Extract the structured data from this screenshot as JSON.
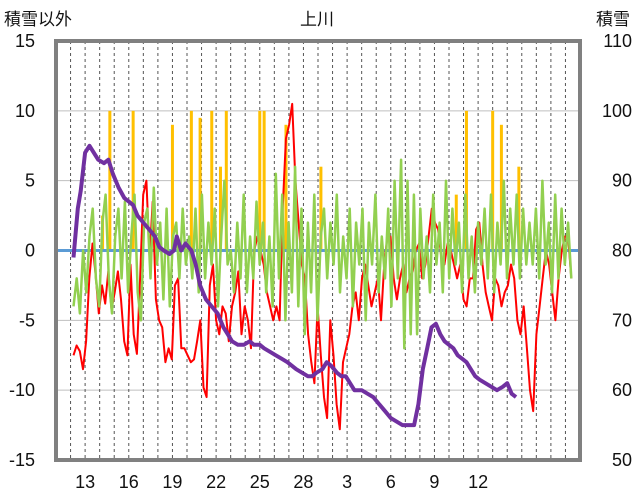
{
  "chart_data": {
    "type": "line",
    "title": "上川",
    "left_axis_label": "積雪以外",
    "right_axis_label": "積雪",
    "left_ylim": [
      -15,
      15
    ],
    "left_yticks": [
      "15",
      "10",
      "5",
      "0",
      "-5",
      "-10",
      "-15"
    ],
    "right_ylim": [
      50,
      110
    ],
    "right_yticks": [
      "110",
      "100",
      "90",
      "80",
      "70",
      "60",
      "50"
    ],
    "x_ticks": [
      "13",
      "16",
      "19",
      "22",
      "25",
      "28",
      "3",
      "6",
      "9",
      "12"
    ],
    "grid": true,
    "colors": {
      "frame": "#808080",
      "temperature": "#ff0000",
      "precipitation": "#ffc000",
      "wind": "#92d050",
      "snow_depth": "#7030a0",
      "zero_line": "#5b9bd5",
      "grid": "#bfbfbf"
    },
    "series": [
      {
        "key": "temperature",
        "axis": "left",
        "values": [
          -7.5,
          -6.8,
          -7.2,
          -8.5,
          -6.5,
          -2,
          0.5,
          -1.8,
          -4.5,
          -2.5,
          -3.8,
          -1.5,
          -4.2,
          -3,
          -1.5,
          -3.5,
          -6.5,
          -7.5,
          -1,
          -6,
          -7.4,
          -2,
          4,
          5,
          -0.5,
          3.5,
          -3.5,
          -5,
          -5.5,
          -8,
          -7,
          -7.8,
          -2.5,
          -2,
          -7,
          -7,
          -7.5,
          -8,
          -7.8,
          -6.5,
          -5,
          -9.8,
          -10.5,
          -2.5,
          -1,
          -5,
          -6,
          -4,
          -4.5,
          -6.5,
          -4,
          -3,
          -1.5,
          -6,
          -4,
          -5,
          -7,
          0,
          1,
          0,
          -1,
          -3,
          -4,
          -5,
          -4,
          -5,
          3,
          8,
          9,
          10.5,
          5,
          2,
          -1,
          -2,
          -6,
          -8,
          -9.5,
          -4,
          -7.5,
          -10.5,
          -12,
          -5,
          -7.5,
          -11,
          -12.8,
          -8,
          -7,
          -6,
          -4,
          -3,
          -5,
          -2,
          -1,
          -2.5,
          -4,
          -3,
          -2,
          -5,
          -1,
          1,
          1,
          -2,
          -3.5,
          -2,
          -1,
          -3,
          -2,
          -1.5,
          0,
          0.5,
          -2,
          -1,
          1,
          3,
          2,
          1.5,
          -0.5,
          -1,
          0.5,
          0,
          -1,
          -2,
          -1,
          -3.5,
          -4,
          -2,
          -2,
          1.5,
          2,
          -1,
          -3,
          -4,
          -5,
          -2,
          -2.5,
          -4,
          -3,
          -2.5,
          -1,
          -2,
          -5,
          -6,
          -4,
          -7,
          -10,
          -11.5,
          -6,
          -4,
          -2,
          0,
          -1,
          -3,
          -5,
          -2,
          0,
          1,
          1,
          -2
        ],
        "x_range": [
          12.2,
          46.4
        ]
      },
      {
        "key": "wind",
        "axis": "left",
        "values": [
          -4,
          -2,
          -4.5,
          0,
          -3,
          1,
          3,
          -2,
          -4,
          2,
          4,
          -2,
          -4.5,
          1,
          3,
          -2,
          3.5,
          -3,
          1,
          4,
          -3,
          -5,
          2,
          3,
          -2,
          4.5,
          -1,
          2,
          -3.5,
          3,
          -4,
          1,
          2,
          -2,
          3,
          -1,
          1,
          -2,
          3,
          -3,
          4,
          -2,
          2,
          -1,
          3,
          -4,
          1,
          5,
          -1,
          0,
          -3,
          2,
          -2,
          4,
          -3,
          1,
          -2,
          3.5,
          -1,
          2,
          -3,
          1,
          -4,
          5.5,
          -2,
          4,
          -5,
          2,
          -3,
          6,
          -4,
          3,
          -6,
          2,
          -3,
          4,
          -5,
          1,
          3,
          -2,
          2,
          -1,
          4,
          -3,
          1,
          -2,
          3,
          -4,
          2,
          -1,
          3,
          -5,
          2,
          -1,
          4,
          -3,
          1,
          -2,
          3,
          -4,
          5,
          -2,
          6.5,
          -7,
          5,
          -6,
          4,
          -6,
          3,
          -2,
          1,
          -3,
          4,
          -1,
          2,
          -3,
          5,
          -2,
          3,
          -1,
          2,
          -3,
          4,
          -2,
          1,
          -3,
          2,
          -1,
          3,
          -2,
          4,
          -3,
          2,
          -1,
          5,
          -2,
          3,
          -1,
          4,
          -2,
          3,
          -1,
          2,
          -1,
          3,
          -2,
          5,
          -1,
          2,
          -3,
          4,
          -2,
          3,
          -1,
          2,
          -2
        ],
        "x_range": [
          12.2,
          46.4
        ]
      },
      {
        "key": "snow_depth",
        "axis": "right",
        "points": [
          [
            12.2,
            79
          ],
          [
            12.5,
            86
          ],
          [
            12.7,
            88.5
          ],
          [
            13,
            94
          ],
          [
            13.3,
            95
          ],
          [
            13.6,
            94
          ],
          [
            13.9,
            93
          ],
          [
            14.3,
            92.5
          ],
          [
            14.6,
            93
          ],
          [
            14.9,
            91
          ],
          [
            15.3,
            89
          ],
          [
            15.7,
            87.5
          ],
          [
            16,
            87
          ],
          [
            16.3,
            86.5
          ],
          [
            16.6,
            85
          ],
          [
            17,
            84
          ],
          [
            17.4,
            83
          ],
          [
            17.8,
            82
          ],
          [
            18.1,
            80.5
          ],
          [
            18.4,
            80
          ],
          [
            18.8,
            79.5
          ],
          [
            19.1,
            80
          ],
          [
            19.3,
            82
          ],
          [
            19.6,
            80
          ],
          [
            19.9,
            81
          ],
          [
            20.3,
            80
          ],
          [
            20.6,
            78
          ],
          [
            20.9,
            75
          ],
          [
            21.3,
            73
          ],
          [
            21.7,
            72
          ],
          [
            22.1,
            71
          ],
          [
            22.5,
            69
          ],
          [
            22.8,
            68
          ],
          [
            23.1,
            67
          ],
          [
            23.5,
            66.5
          ],
          [
            23.9,
            66.5
          ],
          [
            24.3,
            67
          ],
          [
            24.6,
            66.5
          ],
          [
            25,
            66.5
          ],
          [
            25.3,
            66
          ],
          [
            25.7,
            65.5
          ],
          [
            26.1,
            65
          ],
          [
            26.5,
            64.5
          ],
          [
            26.9,
            64
          ],
          [
            27.2,
            63.5
          ],
          [
            27.5,
            63
          ],
          [
            27.9,
            62.5
          ],
          [
            28.3,
            62
          ],
          [
            28.6,
            62
          ],
          [
            28.9,
            62.5
          ],
          [
            29.3,
            63
          ],
          [
            29.6,
            64
          ],
          [
            29.9,
            63.5
          ],
          [
            30.3,
            62.5
          ],
          [
            30.6,
            62
          ],
          [
            30.9,
            62
          ],
          [
            31.5,
            60
          ],
          [
            32,
            60
          ],
          [
            32.4,
            59.5
          ],
          [
            32.8,
            59
          ],
          [
            33.2,
            58
          ],
          [
            33.6,
            57
          ],
          [
            34,
            56
          ],
          [
            34.4,
            55.5
          ],
          [
            34.8,
            55
          ],
          [
            35.2,
            55
          ],
          [
            35.6,
            55
          ],
          [
            35.9,
            58
          ],
          [
            36.2,
            63
          ],
          [
            36.5,
            66
          ],
          [
            36.8,
            69
          ],
          [
            37.1,
            69.5
          ],
          [
            37.4,
            68
          ],
          [
            37.7,
            67
          ],
          [
            38,
            66.5
          ],
          [
            38.3,
            66
          ],
          [
            38.6,
            65
          ],
          [
            38.9,
            64.5
          ],
          [
            39.2,
            64
          ],
          [
            39.5,
            63
          ],
          [
            39.8,
            62
          ],
          [
            40.1,
            61.5
          ],
          [
            40.5,
            61
          ],
          [
            40.9,
            60.5
          ],
          [
            41.3,
            60
          ],
          [
            41.7,
            60.5
          ],
          [
            42,
            61
          ],
          [
            42.3,
            59.5
          ],
          [
            42.6,
            59
          ]
        ]
      },
      {
        "key": "precipitation",
        "axis": "left",
        "points": [
          [
            14.2,
            2.5
          ],
          [
            14.7,
            10
          ],
          [
            16.3,
            10
          ],
          [
            19,
            9
          ],
          [
            20.3,
            10
          ],
          [
            20.9,
            9.5
          ],
          [
            21.7,
            10
          ],
          [
            22.3,
            6
          ],
          [
            22.7,
            10
          ],
          [
            25,
            10
          ],
          [
            25.3,
            10
          ],
          [
            26.8,
            9
          ],
          [
            29.2,
            6
          ],
          [
            38.5,
            4
          ],
          [
            39.2,
            10
          ],
          [
            41,
            10
          ],
          [
            41.6,
            9
          ],
          [
            42.8,
            6
          ]
        ]
      }
    ]
  }
}
